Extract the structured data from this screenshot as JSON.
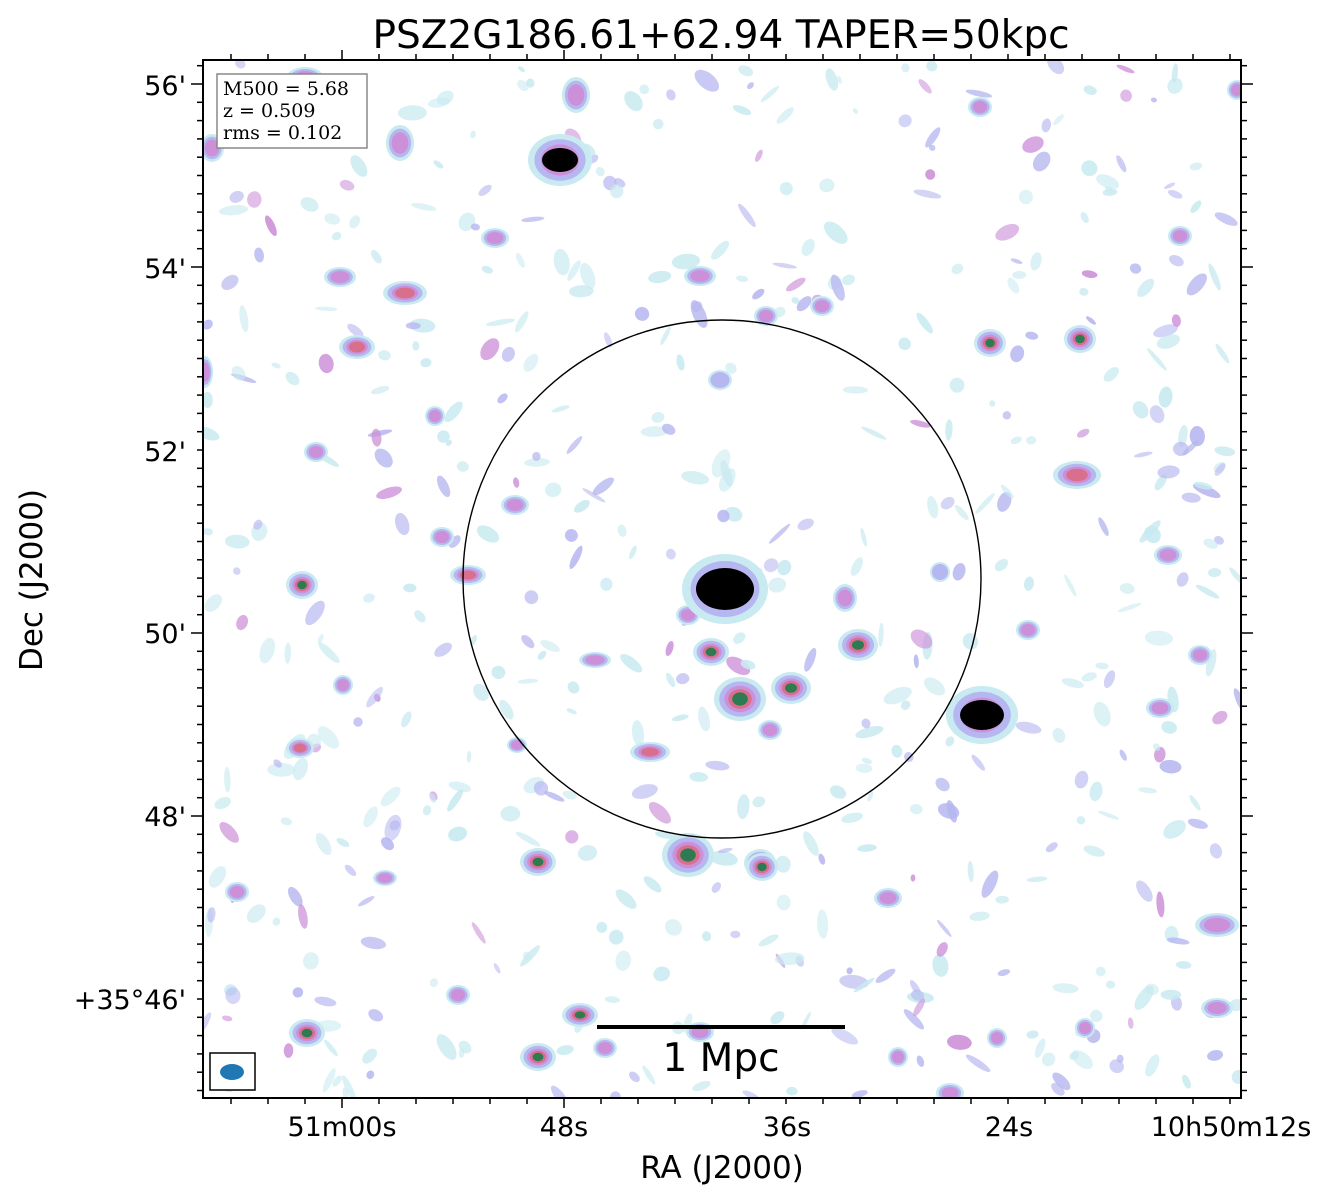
{
  "chart_data": {
    "type": "heatmap",
    "title": "PSZ2G186.61+62.94 TAPER=50kpc",
    "xlabel": "RA (J2000)",
    "ylabel": "Dec (J2000)",
    "x_ticks": [
      "51m00s",
      "48s",
      "36s",
      "24s",
      "10h50m12s"
    ],
    "y_ticks": [
      "56'",
      "54'",
      "52'",
      "50'",
      "48'",
      "+35°46'"
    ],
    "info_box": [
      "M500 = 5.68",
      "z = 0.509",
      "rms = 0.102"
    ],
    "scale_bar_label": "1 Mpc",
    "colormap": [
      "#ffffff",
      "#c8eaf0",
      "#b6b6f0",
      "#cc90d8",
      "#d86f8c",
      "#2e7a52",
      "#000000"
    ],
    "sources": [
      {
        "ra": "10h50m36.8s",
        "dec": "35d50.5m",
        "peak": "saturated"
      },
      {
        "ra": "10h50m48.0s",
        "dec": "35d55.2m",
        "peak": "saturated"
      },
      {
        "ra": "10h50m25.4s",
        "dec": "35d49.1m",
        "peak": "saturated"
      }
    ]
  }
}
